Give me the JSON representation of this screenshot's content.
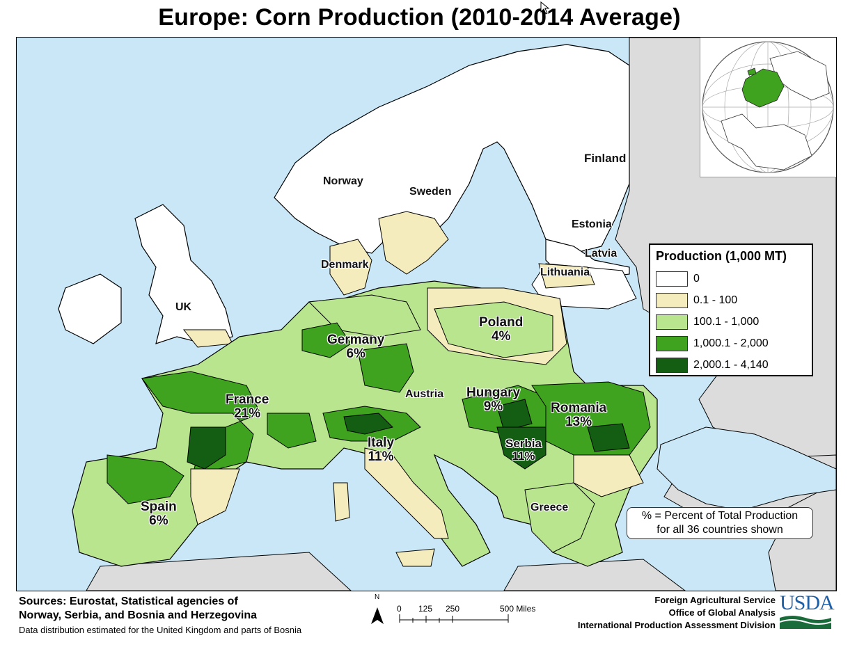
{
  "title": "Europe: Corn Production (2010-2014 Average)",
  "colors": {
    "sea": "#c9e7f7",
    "non_eu_land": "#dcdcdc",
    "class_0": "#ffffff",
    "class_1": "#f5ecbe",
    "class_2": "#b9e58f",
    "class_3": "#3fa31f",
    "class_4": "#135e13",
    "border": "#000000"
  },
  "legend": {
    "title": "Production (1,000 MT)",
    "classes": [
      {
        "label": "0",
        "color": "#ffffff"
      },
      {
        "label": "0.1 - 100",
        "color": "#f5ecbe"
      },
      {
        "label": "100.1 - 1,000",
        "color": "#b9e58f"
      },
      {
        "label": "1,000.1 - 2,000",
        "color": "#3fa31f"
      },
      {
        "label": "2,000.1 - 4,140",
        "color": "#135e13"
      }
    ]
  },
  "countries": [
    {
      "name": "Finland",
      "percent": ""
    },
    {
      "name": "Norway",
      "percent": ""
    },
    {
      "name": "Sweden",
      "percent": ""
    },
    {
      "name": "Estonia",
      "percent": ""
    },
    {
      "name": "Latvia",
      "percent": ""
    },
    {
      "name": "Lithuania",
      "percent": ""
    },
    {
      "name": "Denmark",
      "percent": ""
    },
    {
      "name": "UK",
      "percent": ""
    },
    {
      "name": "Germany",
      "percent": "6%"
    },
    {
      "name": "Poland",
      "percent": "4%"
    },
    {
      "name": "France",
      "percent": "21%"
    },
    {
      "name": "Austria",
      "percent": ""
    },
    {
      "name": "Hungary",
      "percent": "9%"
    },
    {
      "name": "Romania",
      "percent": "13%"
    },
    {
      "name": "Italy",
      "percent": "11%"
    },
    {
      "name": "Serbia",
      "percent": "11%"
    },
    {
      "name": "Spain",
      "percent": "6%"
    },
    {
      "name": "Greece",
      "percent": ""
    }
  ],
  "note": {
    "line1": "% = Percent of Total Production",
    "line2": "for all 36 countries shown"
  },
  "sources": {
    "line1": "Sources: Eurostat, Statistical agencies of",
    "line2": "Norway, Serbia, and Bosnia and Herzegovina",
    "line3": "Data distribution estimated for the United Kingdom and parts of Bosnia"
  },
  "scale_bar": {
    "north": "N",
    "ticks": [
      "0",
      "125",
      "250",
      "500 Miles"
    ]
  },
  "credits": {
    "line1": "Foreign Agricultural Service",
    "line2": "Office of Global Analysis",
    "line3": "International Production Assessment Division",
    "logo_text": "USDA"
  }
}
